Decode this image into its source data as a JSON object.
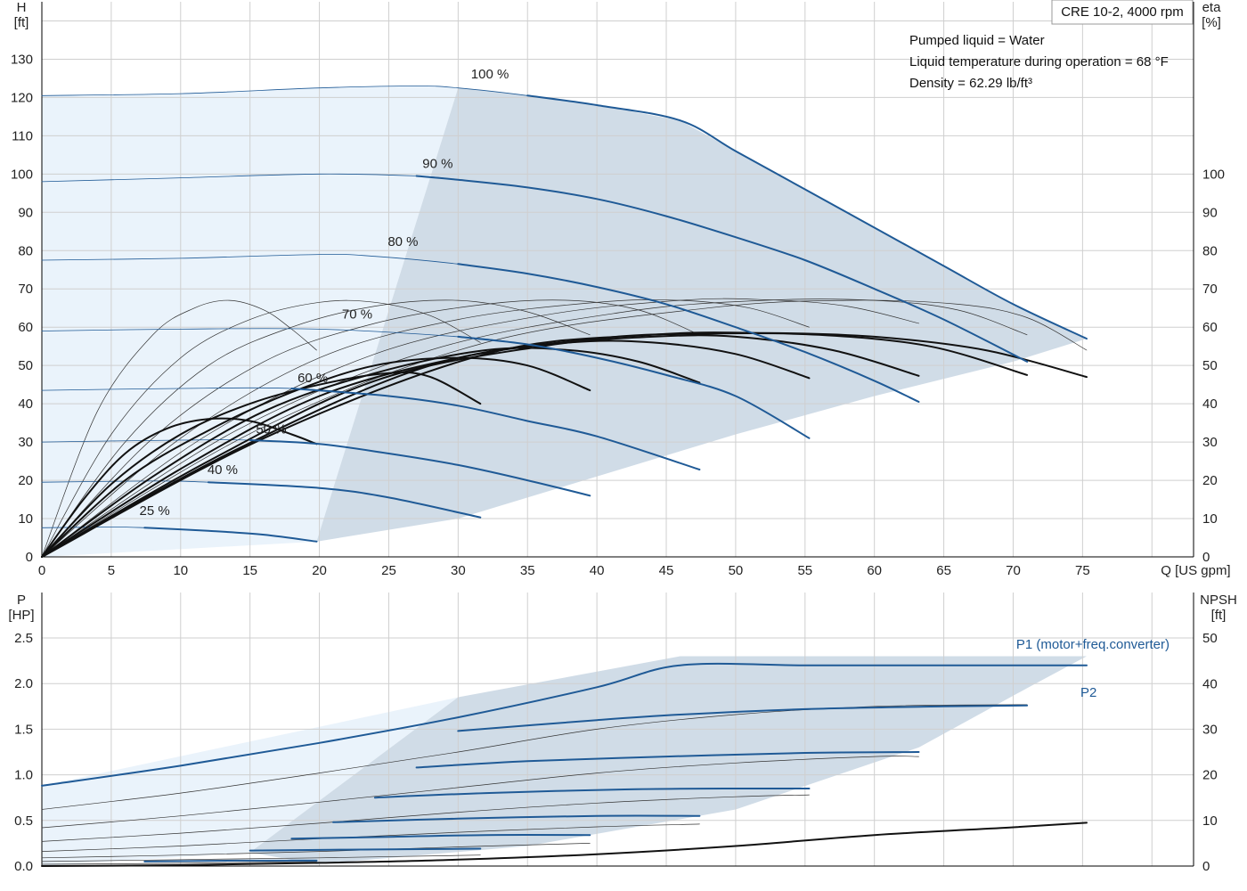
{
  "chart_data": [
    {
      "type": "line",
      "title": "CRE 10-2, 4000 rpm",
      "info": [
        "Pumped liquid = Water",
        "Liquid temperature during operation = 68 °F",
        "Density = 62.29 lb/ft³"
      ],
      "ylabel_left": [
        "H",
        "[ft]"
      ],
      "ylabel_right": [
        "eta",
        "[%]"
      ],
      "xlabel": "Q [US gpm]",
      "xlim": [
        0,
        83
      ],
      "ylim": [
        0,
        145
      ],
      "x_ticks": [
        "0",
        "5",
        "10",
        "15",
        "20",
        "25",
        "30",
        "35",
        "40",
        "45",
        "50",
        "55",
        "60",
        "65",
        "70",
        "75"
      ],
      "y_ticks_left": [
        "0",
        "10",
        "20",
        "30",
        "40",
        "50",
        "60",
        "70",
        "80",
        "90",
        "100",
        "110",
        "120",
        "130"
      ],
      "y_ticks_right": [
        "0",
        "10",
        "20",
        "30",
        "40",
        "50",
        "60",
        "70",
        "80",
        "90",
        "100"
      ],
      "grid": true,
      "operating_area_color": "#d0dce7",
      "extended_area_color": "#eaf3fb",
      "head_curves": [
        {
          "name": "100 %",
          "x": [
            0,
            10,
            20,
            27,
            30,
            35,
            40,
            46,
            50,
            55,
            60,
            65,
            70,
            75.3
          ],
          "y": [
            120.5,
            121,
            122.5,
            123,
            122.5,
            120.5,
            118,
            114,
            106,
            96,
            86,
            76,
            66,
            57
          ]
        },
        {
          "name": "90 %",
          "x": [
            0,
            10,
            20,
            27,
            30,
            35,
            40,
            45,
            50,
            55,
            60,
            65,
            71
          ],
          "y": [
            98,
            99,
            100,
            99.5,
            98.5,
            96.5,
            93.5,
            89,
            83.5,
            77.5,
            70,
            62,
            51
          ]
        },
        {
          "name": "80 %",
          "x": [
            0,
            10,
            20,
            24,
            30,
            35,
            40,
            45,
            50,
            55,
            60,
            63.2
          ],
          "y": [
            77.5,
            78,
            79,
            78.5,
            76.5,
            74,
            70.5,
            66,
            60,
            53.5,
            46,
            40.5
          ]
        },
        {
          "name": "70 %",
          "x": [
            0,
            10,
            20,
            30,
            35,
            40,
            45,
            50,
            55.3
          ],
          "y": [
            59,
            59.5,
            59.5,
            57.5,
            55.5,
            52,
            47.5,
            42,
            31
          ]
        },
        {
          "name": "60 %",
          "x": [
            0,
            10,
            18,
            25,
            30,
            35,
            40,
            47.4
          ],
          "y": [
            43.5,
            44,
            44,
            42,
            39.5,
            35.5,
            31.5,
            22.8
          ]
        },
        {
          "name": "50 %",
          "x": [
            0,
            10,
            15,
            20,
            25,
            30,
            35,
            39.5
          ],
          "y": [
            30,
            30.5,
            30.5,
            29.5,
            27,
            24,
            20,
            16
          ]
        },
        {
          "name": "40 %",
          "x": [
            0,
            8,
            12,
            20,
            25,
            31.6
          ],
          "y": [
            19.5,
            19.8,
            19.5,
            18,
            15.5,
            10.3
          ]
        },
        {
          "name": "25 %",
          "x": [
            0,
            5,
            7.4,
            12,
            16,
            19.8
          ],
          "y": [
            7.6,
            7.8,
            7.6,
            6.8,
            5.8,
            4
          ]
        }
      ],
      "efficiency_curves": [
        {
          "x": [
            0,
            3,
            6,
            9,
            12,
            15,
            18,
            19.8
          ],
          "y": [
            0,
            15,
            27,
            33.5,
            36,
            35.5,
            32,
            29.5
          ]
        },
        {
          "x": [
            0,
            5,
            10,
            15,
            20,
            25,
            28,
            31.6
          ],
          "y": [
            0,
            19,
            32,
            40,
            45,
            48,
            47,
            40
          ]
        },
        {
          "x": [
            0,
            6,
            12,
            18,
            24,
            30,
            35,
            39.5
          ],
          "y": [
            0,
            20,
            33,
            43,
            50,
            52,
            50,
            43.5
          ]
        },
        {
          "x": [
            0,
            8,
            16,
            24,
            32,
            38,
            43,
            47.4
          ],
          "y": [
            0,
            21,
            38,
            48,
            54,
            54,
            51,
            45.5
          ]
        },
        {
          "x": [
            0,
            10,
            20,
            30,
            38,
            44,
            50,
            55.3
          ],
          "y": [
            0,
            23,
            42,
            52,
            56,
            56,
            53,
            46.7
          ]
        },
        {
          "x": [
            0,
            12,
            24,
            36,
            44,
            50,
            57,
            63.2
          ],
          "y": [
            0,
            25,
            46,
            55,
            57.5,
            57.5,
            54,
            47.3
          ]
        },
        {
          "x": [
            0,
            14,
            28,
            40,
            48,
            56,
            64,
            71
          ],
          "y": [
            0,
            28,
            50,
            57,
            58.3,
            58,
            55,
            47.5
          ]
        },
        {
          "x": [
            0,
            16,
            32,
            44,
            52,
            60,
            68,
            75.3
          ],
          "y": [
            0,
            31,
            53,
            58,
            58.5,
            57.5,
            54,
            47
          ]
        }
      ],
      "efficiency_thin_curves": [
        {
          "x": [
            0,
            4,
            8,
            11,
            13.5,
            16,
            18,
            19.8
          ],
          "y": [
            0,
            38,
            58,
            65,
            67,
            64.5,
            59.5,
            54
          ]
        },
        {
          "x": [
            0,
            5,
            10,
            15,
            20,
            24,
            28,
            31.6
          ],
          "y": [
            0,
            32,
            52,
            62,
            66.5,
            66.5,
            63,
            56
          ]
        },
        {
          "x": [
            0,
            6,
            12,
            18,
            24,
            30,
            35,
            39.5
          ],
          "y": [
            0,
            30,
            50,
            60,
            65.5,
            67,
            64,
            58
          ]
        },
        {
          "x": [
            0,
            8,
            16,
            24,
            32,
            38,
            43,
            47.4
          ],
          "y": [
            0,
            31,
            51,
            61,
            66,
            67,
            64.5,
            58
          ]
        },
        {
          "x": [
            0,
            10,
            20,
            30,
            40,
            46,
            51,
            55.3
          ],
          "y": [
            0,
            31,
            52,
            62,
            66.5,
            67,
            65,
            60
          ]
        },
        {
          "x": [
            0,
            12,
            24,
            36,
            46,
            52,
            58,
            63.2
          ],
          "y": [
            0,
            32,
            53,
            63,
            67,
            67.2,
            65.5,
            61
          ]
        },
        {
          "x": [
            0,
            14,
            28,
            42,
            52,
            60,
            66,
            71
          ],
          "y": [
            0,
            33,
            54,
            64,
            67,
            67,
            64.5,
            58
          ]
        },
        {
          "x": [
            0,
            16,
            32,
            48,
            58,
            66,
            71,
            75.3
          ],
          "y": [
            0,
            34,
            56,
            65,
            67,
            66,
            62.5,
            54
          ]
        }
      ],
      "labels_pos_data": [
        {
          "text": "100 %",
          "x": 30.8,
          "y": 124
        },
        {
          "text": "90 %",
          "x": 27.3,
          "y": 100.7
        },
        {
          "text": "80 %",
          "x": 24.8,
          "y": 80.3
        },
        {
          "text": "70 %",
          "x": 21.5,
          "y": 61.3
        },
        {
          "text": "60 %",
          "x": 18.3,
          "y": 44.7
        },
        {
          "text": "50 %",
          "x": 15.3,
          "y": 31.3
        },
        {
          "text": "40 %",
          "x": 11.8,
          "y": 20.7
        },
        {
          "text": "25 %",
          "x": 6.9,
          "y": 10
        }
      ]
    },
    {
      "type": "line",
      "ylabel_left": [
        "P",
        "[HP]"
      ],
      "ylabel_right": [
        "NPSH",
        "[ft]"
      ],
      "xlim": [
        0,
        83
      ],
      "ylim": [
        0,
        2.5
      ],
      "y_ticks_left": [
        "0.0",
        "0.5",
        "1.0",
        "1.5",
        "2.0",
        "2.5"
      ],
      "y_ticks_right": [
        "0",
        "10",
        "20",
        "30",
        "40",
        "50"
      ],
      "grid": true,
      "series_labels": [
        "P1 (motor+freq.converter)",
        "P2"
      ],
      "p1_curves": [
        {
          "x": [
            0,
            10,
            20,
            30,
            40,
            46,
            55,
            65,
            75.3
          ],
          "y": [
            0.88,
            1.1,
            1.35,
            1.63,
            1.96,
            2.2,
            2.2,
            2.2,
            2.2
          ]
        },
        {
          "x": [
            0,
            10,
            20,
            30,
            40,
            50,
            60,
            71
          ],
          "y": [
            0.62,
            0.8,
            1.02,
            1.25,
            1.5,
            1.66,
            1.75,
            1.77
          ]
        },
        {
          "x": [
            0,
            10,
            20,
            30,
            40,
            50,
            60,
            63.2
          ],
          "y": [
            0.42,
            0.55,
            0.7,
            0.86,
            1.02,
            1.13,
            1.2,
            1.2
          ]
        },
        {
          "x": [
            0,
            10,
            20,
            30,
            40,
            50,
            55.3
          ],
          "y": [
            0.27,
            0.36,
            0.47,
            0.59,
            0.69,
            0.76,
            0.78
          ]
        },
        {
          "x": [
            0,
            10,
            20,
            30,
            40,
            47.4
          ],
          "y": [
            0.16,
            0.22,
            0.3,
            0.37,
            0.43,
            0.46
          ]
        },
        {
          "x": [
            0,
            10,
            20,
            30,
            39.5
          ],
          "y": [
            0.09,
            0.12,
            0.16,
            0.21,
            0.25
          ]
        },
        {
          "x": [
            0,
            10,
            20,
            31.6
          ],
          "y": [
            0.05,
            0.07,
            0.09,
            0.12
          ]
        },
        {
          "x": [
            0,
            10,
            19.8
          ],
          "y": [
            0.02,
            0.03,
            0.05
          ]
        }
      ],
      "p2_curves": [
        {
          "x": [
            30,
            40,
            46,
            55,
            65,
            71
          ],
          "y": [
            1.48,
            1.6,
            1.66,
            1.72,
            1.75,
            1.76
          ]
        },
        {
          "x": [
            27,
            35,
            45,
            55,
            63.2
          ],
          "y": [
            1.08,
            1.15,
            1.2,
            1.24,
            1.25
          ]
        },
        {
          "x": [
            24,
            32,
            42,
            50,
            55.3
          ],
          "y": [
            0.75,
            0.8,
            0.84,
            0.85,
            0.85
          ]
        },
        {
          "x": [
            21,
            30,
            40,
            47.4
          ],
          "y": [
            0.48,
            0.52,
            0.55,
            0.55
          ]
        },
        {
          "x": [
            18,
            25,
            32,
            39.5
          ],
          "y": [
            0.3,
            0.32,
            0.34,
            0.34
          ]
        },
        {
          "x": [
            15,
            22,
            31.6
          ],
          "y": [
            0.17,
            0.18,
            0.19
          ]
        },
        {
          "x": [
            7.4,
            14,
            19.8
          ],
          "y": [
            0.05,
            0.06,
            0.06
          ]
        }
      ],
      "npsh_curve": {
        "x": [
          0,
          10,
          20,
          30,
          40,
          50,
          60,
          70,
          75.3
        ],
        "y": [
          0,
          0.2,
          0.7,
          1.4,
          2.6,
          4.4,
          6.8,
          8.5,
          9.5
        ]
      }
    }
  ]
}
